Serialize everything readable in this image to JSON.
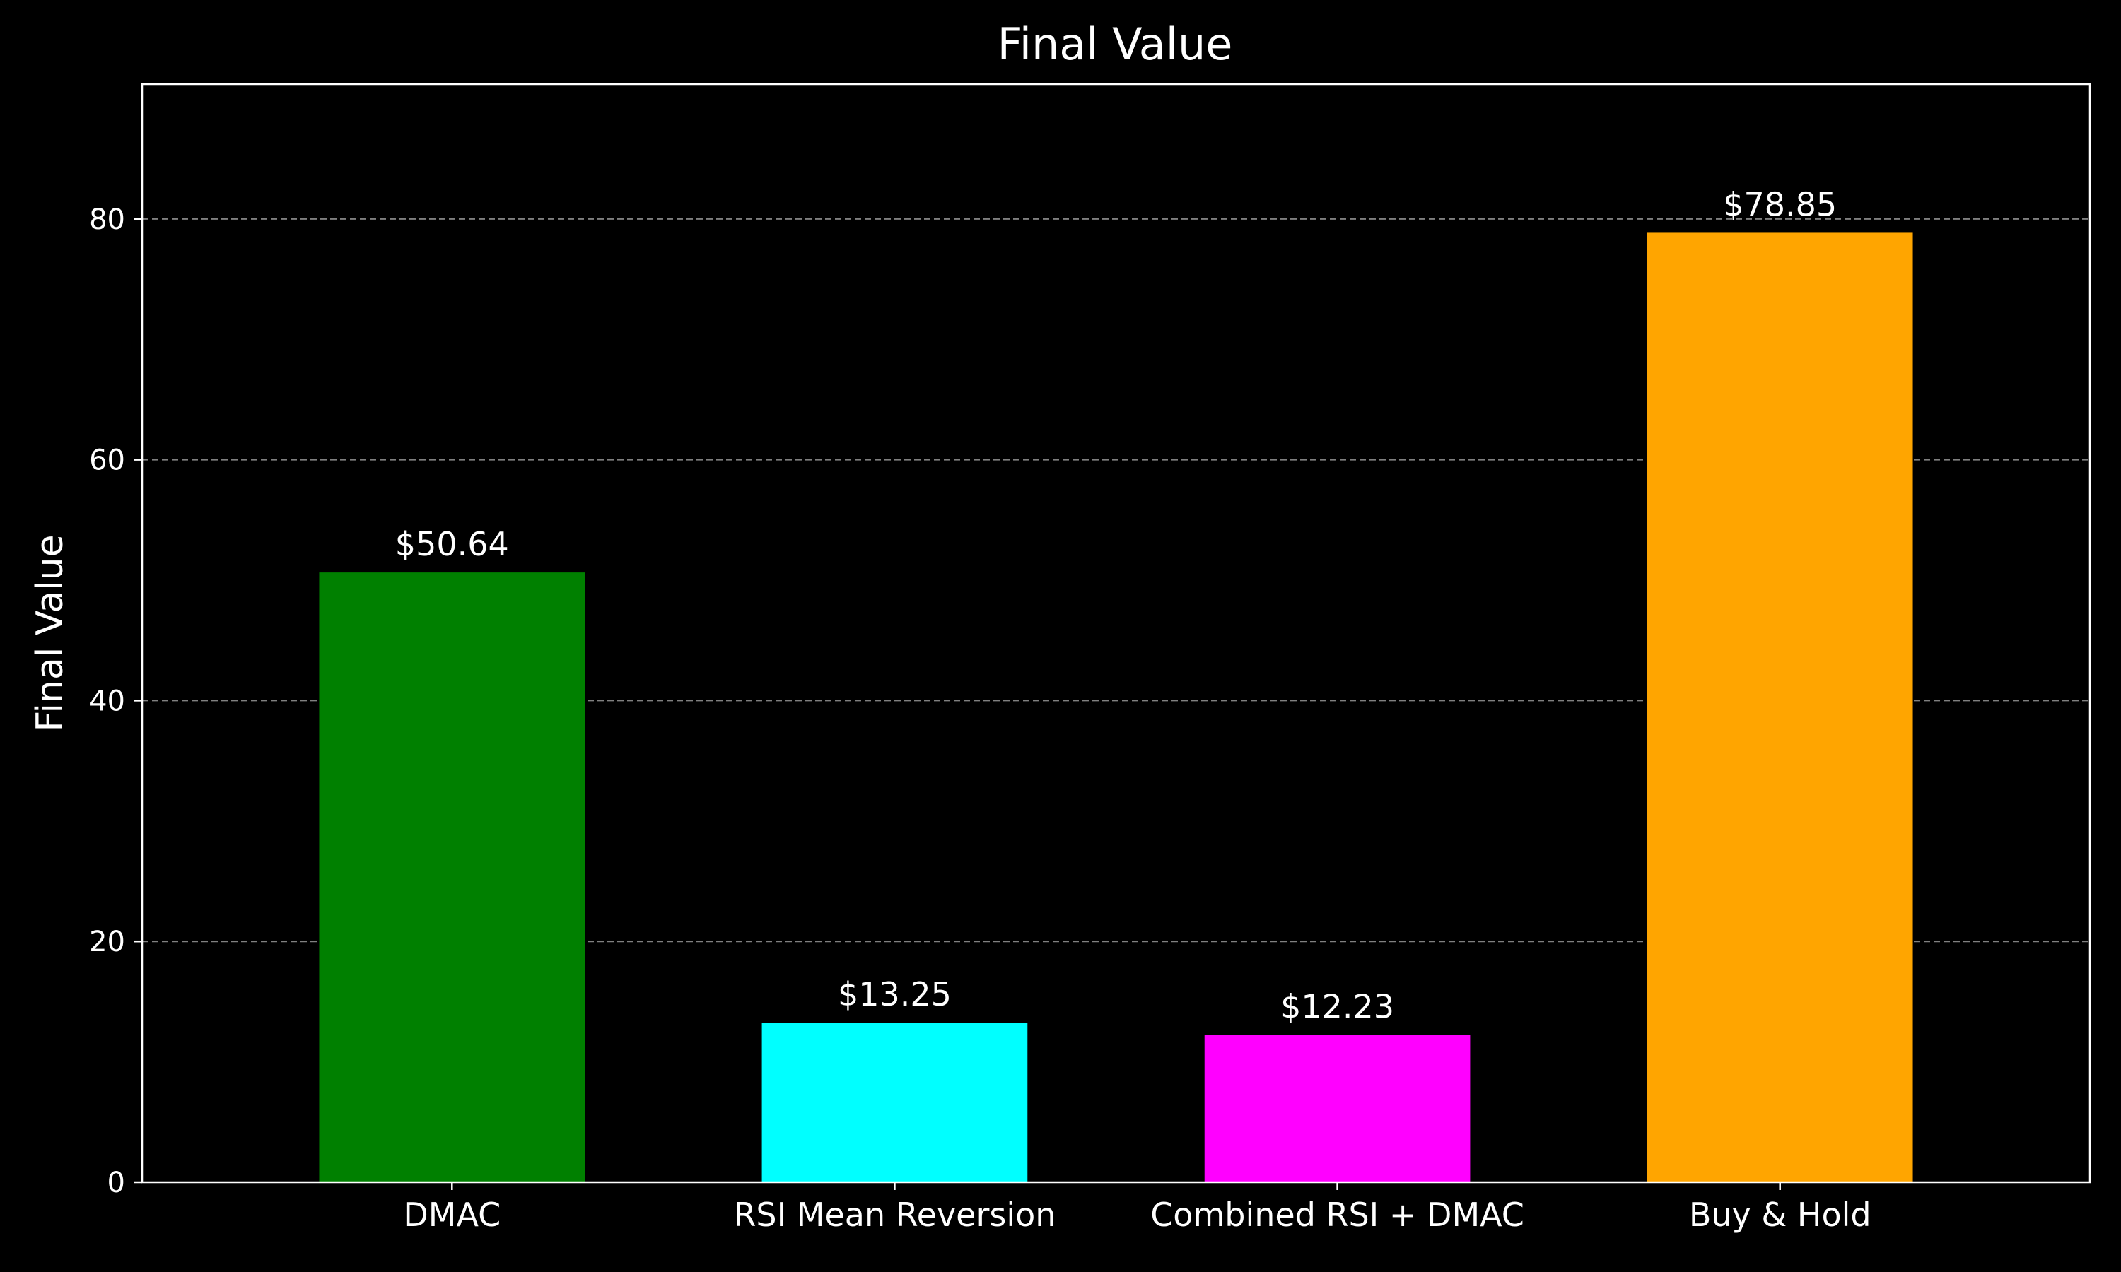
{
  "chart_data": {
    "type": "bar",
    "title": "Final Value",
    "xlabel": "",
    "ylabel": "Final Value",
    "categories": [
      "DMAC",
      "RSI Mean Reversion",
      "Combined RSI + DMAC",
      "Buy & Hold"
    ],
    "values": [
      50.64,
      13.25,
      12.23,
      78.85
    ],
    "value_labels": [
      "$50.64",
      "$13.25",
      "$12.23",
      "$78.85"
    ],
    "colors": [
      "#008000",
      "#00ffff",
      "#ff00ff",
      "#ffa500"
    ],
    "ylim": [
      0,
      91.2
    ],
    "yticks": [
      0,
      20,
      40,
      60,
      80
    ],
    "ytick_labels": [
      "0",
      "20",
      "40",
      "60",
      "80"
    ],
    "grid": "y-dashed",
    "background": "#000000",
    "foreground": "#ffffff",
    "grid_color": "#808080"
  }
}
